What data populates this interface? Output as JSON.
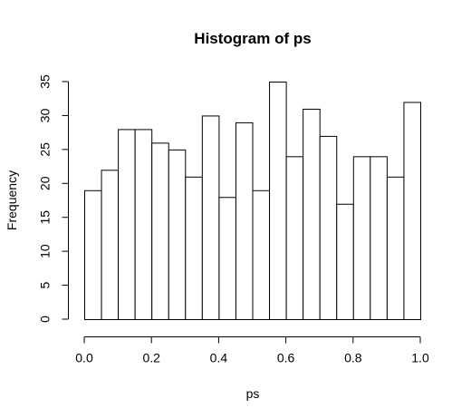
{
  "chart_data": {
    "type": "bar",
    "title": "Histogram of ps",
    "xlabel": "ps",
    "ylabel": "Frequency",
    "bin_edges": [
      0.0,
      0.05,
      0.1,
      0.15,
      0.2,
      0.25,
      0.3,
      0.35,
      0.4,
      0.45,
      0.5,
      0.55,
      0.6,
      0.65,
      0.7,
      0.75,
      0.8,
      0.85,
      0.9,
      0.95,
      1.0
    ],
    "values": [
      19,
      22,
      28,
      28,
      26,
      25,
      21,
      30,
      18,
      29,
      19,
      35,
      24,
      31,
      27,
      17,
      24,
      24,
      21,
      32
    ],
    "xlim": [
      0,
      1
    ],
    "ylim": [
      0,
      35
    ],
    "x_ticks": [
      0.0,
      0.2,
      0.4,
      0.6,
      0.8,
      1.0
    ],
    "x_tick_labels": [
      "0.0",
      "0.2",
      "0.4",
      "0.6",
      "0.8",
      "1.0"
    ],
    "y_ticks": [
      0,
      5,
      10,
      15,
      20,
      25,
      30,
      35
    ],
    "y_tick_labels": [
      "0",
      "5",
      "10",
      "15",
      "20",
      "25",
      "30",
      "35"
    ],
    "grid": false,
    "legend": "none"
  }
}
